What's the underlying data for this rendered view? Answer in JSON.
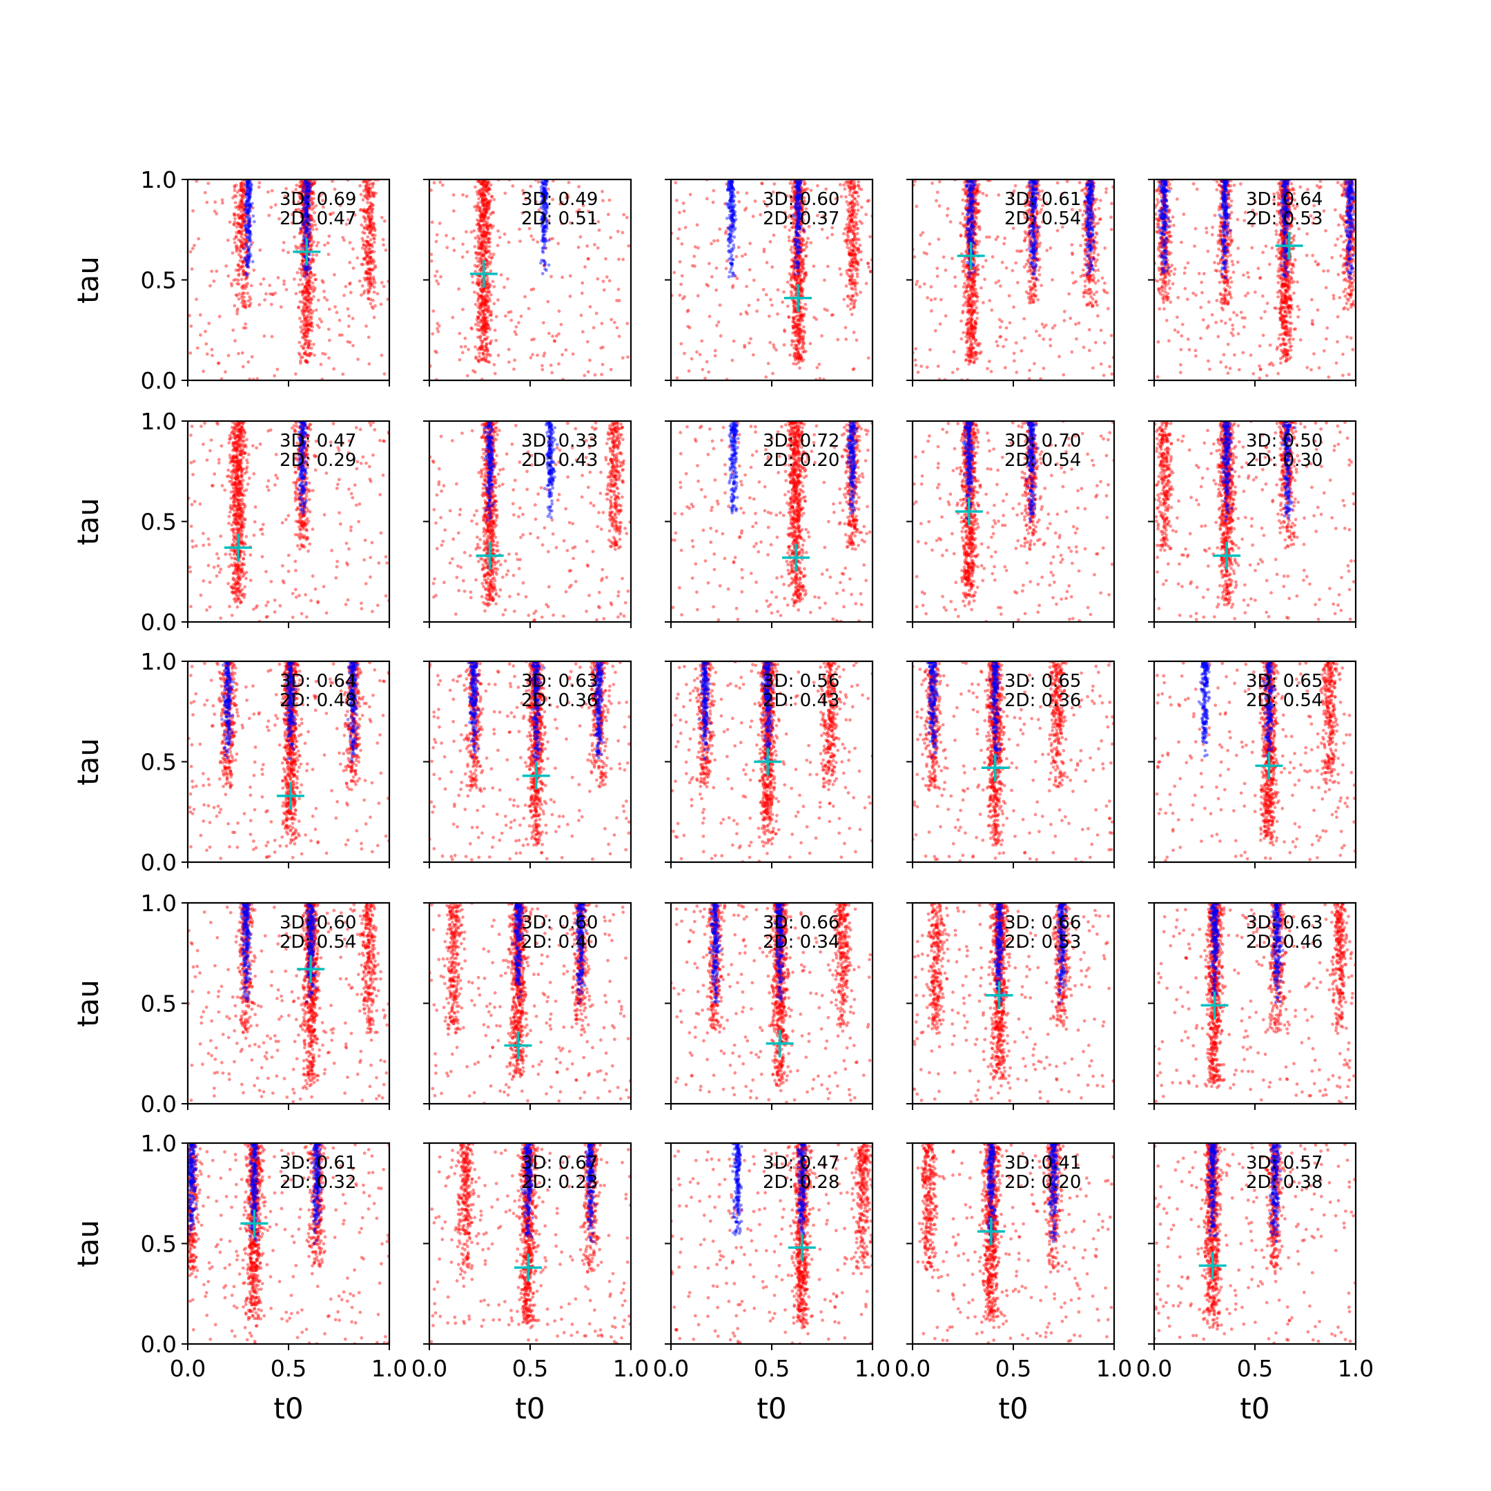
{
  "colors": {
    "red_series": "#ff0000",
    "blue_series": "#0000ff",
    "marker": "#00bfbf",
    "axes": "#000000",
    "background": "#ffffff"
  },
  "chart_data": {
    "type": "scatter",
    "layout": "grid",
    "rows": 5,
    "cols": 5,
    "xlabel": "t0",
    "ylabel": "tau",
    "xlim": [
      0,
      1
    ],
    "ylim": [
      0,
      1
    ],
    "x_ticks": [
      "0.0",
      "0.5",
      "1.0"
    ],
    "y_ticks": [
      "0.0",
      "0.5",
      "1.0"
    ],
    "grid": false,
    "marker_symbol": "plus",
    "panels": [
      {
        "annot3d": "3D: 0.69",
        "annot2d": "2D: 0.47",
        "marker": [
          0.59,
          0.64
        ],
        "red_x": [
          0.27,
          0.59,
          0.9
        ],
        "blue_x": [
          0.59,
          0.3
        ]
      },
      {
        "annot3d": "3D: 0.49",
        "annot2d": "2D: 0.51",
        "marker": [
          0.27,
          0.53
        ],
        "red_x": [
          0.27
        ],
        "blue_x": [
          0.57
        ]
      },
      {
        "annot3d": "3D: 0.60",
        "annot2d": "2D: 0.37",
        "marker": [
          0.63,
          0.41
        ],
        "red_x": [
          0.63,
          0.9
        ],
        "blue_x": [
          0.3,
          0.63
        ]
      },
      {
        "annot3d": "3D: 0.61",
        "annot2d": "2D: 0.54",
        "marker": [
          0.29,
          0.62
        ],
        "red_x": [
          0.29,
          0.6,
          0.88
        ],
        "blue_x": [
          0.29,
          0.6,
          0.88
        ]
      },
      {
        "annot3d": "3D: 0.64",
        "annot2d": "2D: 0.53",
        "marker": [
          0.67,
          0.67
        ],
        "red_x": [
          0.05,
          0.35,
          0.65,
          0.97
        ],
        "blue_x": [
          0.35,
          0.65,
          0.97,
          0.05
        ]
      },
      {
        "annot3d": "3D: 0.47",
        "annot2d": "2D: 0.29",
        "marker": [
          0.25,
          0.37
        ],
        "red_x": [
          0.25,
          0.57
        ],
        "blue_x": [
          0.57
        ]
      },
      {
        "annot3d": "3D: 0.33",
        "annot2d": "2D: 0.43",
        "marker": [
          0.3,
          0.33
        ],
        "red_x": [
          0.3,
          0.92
        ],
        "blue_x": [
          0.3,
          0.6
        ]
      },
      {
        "annot3d": "3D: 0.72",
        "annot2d": "2D: 0.20",
        "marker": [
          0.62,
          0.32
        ],
        "red_x": [
          0.62,
          0.9
        ],
        "blue_x": [
          0.31,
          0.9
        ]
      },
      {
        "annot3d": "3D: 0.70",
        "annot2d": "2D: 0.54",
        "marker": [
          0.28,
          0.55
        ],
        "red_x": [
          0.28,
          0.59
        ],
        "blue_x": [
          0.28,
          0.59
        ]
      },
      {
        "annot3d": "3D: 0.50",
        "annot2d": "2D: 0.30",
        "marker": [
          0.36,
          0.33
        ],
        "red_x": [
          0.05,
          0.36,
          0.66
        ],
        "blue_x": [
          0.36,
          0.66
        ]
      },
      {
        "annot3d": "3D: 0.64",
        "annot2d": "2D: 0.48",
        "marker": [
          0.51,
          0.33
        ],
        "red_x": [
          0.2,
          0.51,
          0.82
        ],
        "blue_x": [
          0.2,
          0.51,
          0.82
        ]
      },
      {
        "annot3d": "3D: 0.63",
        "annot2d": "2D: 0.36",
        "marker": [
          0.53,
          0.43
        ],
        "red_x": [
          0.22,
          0.53,
          0.84
        ],
        "blue_x": [
          0.22,
          0.53,
          0.84
        ]
      },
      {
        "annot3d": "3D: 0.56",
        "annot2d": "2D: 0.43",
        "marker": [
          0.48,
          0.5
        ],
        "red_x": [
          0.17,
          0.48,
          0.79
        ],
        "blue_x": [
          0.17,
          0.48
        ]
      },
      {
        "annot3d": "3D: 0.65",
        "annot2d": "2D: 0.36",
        "marker": [
          0.41,
          0.47
        ],
        "red_x": [
          0.1,
          0.41,
          0.72
        ],
        "blue_x": [
          0.1,
          0.41
        ]
      },
      {
        "annot3d": "3D: 0.65",
        "annot2d": "2D: 0.54",
        "marker": [
          0.57,
          0.48
        ],
        "red_x": [
          0.57,
          0.87
        ],
        "blue_x": [
          0.25,
          0.57
        ]
      },
      {
        "annot3d": "3D: 0.60",
        "annot2d": "2D: 0.54",
        "marker": [
          0.61,
          0.67
        ],
        "red_x": [
          0.29,
          0.61,
          0.9
        ],
        "blue_x": [
          0.29,
          0.61
        ]
      },
      {
        "annot3d": "3D: 0.60",
        "annot2d": "2D: 0.40",
        "marker": [
          0.44,
          0.29
        ],
        "red_x": [
          0.12,
          0.44,
          0.75
        ],
        "blue_x": [
          0.75,
          0.44
        ]
      },
      {
        "annot3d": "3D: 0.66",
        "annot2d": "2D: 0.34",
        "marker": [
          0.54,
          0.3
        ],
        "red_x": [
          0.22,
          0.54,
          0.85
        ],
        "blue_x": [
          0.22,
          0.54
        ]
      },
      {
        "annot3d": "3D: 0.66",
        "annot2d": "2D: 0.53",
        "marker": [
          0.43,
          0.54
        ],
        "red_x": [
          0.12,
          0.43,
          0.74
        ],
        "blue_x": [
          0.43,
          0.74
        ]
      },
      {
        "annot3d": "3D: 0.63",
        "annot2d": "2D: 0.46",
        "marker": [
          0.3,
          0.49
        ],
        "red_x": [
          0.3,
          0.61,
          0.92
        ],
        "blue_x": [
          0.3,
          0.61
        ]
      },
      {
        "annot3d": "3D: 0.61",
        "annot2d": "2D: 0.32",
        "marker": [
          0.33,
          0.6
        ],
        "red_x": [
          0.02,
          0.33,
          0.64
        ],
        "blue_x": [
          0.02,
          0.33,
          0.64
        ]
      },
      {
        "annot3d": "3D: 0.67",
        "annot2d": "2D: 0.23",
        "marker": [
          0.49,
          0.38
        ],
        "red_x": [
          0.49,
          0.8,
          0.18
        ],
        "blue_x": [
          0.49,
          0.8
        ]
      },
      {
        "annot3d": "3D: 0.47",
        "annot2d": "2D: 0.28",
        "marker": [
          0.65,
          0.48
        ],
        "red_x": [
          0.65,
          0.95
        ],
        "blue_x": [
          0.33,
          0.65
        ]
      },
      {
        "annot3d": "3D: 0.41",
        "annot2d": "2D: 0.20",
        "marker": [
          0.39,
          0.56
        ],
        "red_x": [
          0.08,
          0.39,
          0.7
        ],
        "blue_x": [
          0.39,
          0.7
        ]
      },
      {
        "annot3d": "3D: 0.57",
        "annot2d": "2D: 0.38",
        "marker": [
          0.29,
          0.39
        ],
        "red_x": [
          0.29,
          0.6
        ],
        "blue_x": [
          0.6,
          0.29
        ]
      }
    ]
  }
}
